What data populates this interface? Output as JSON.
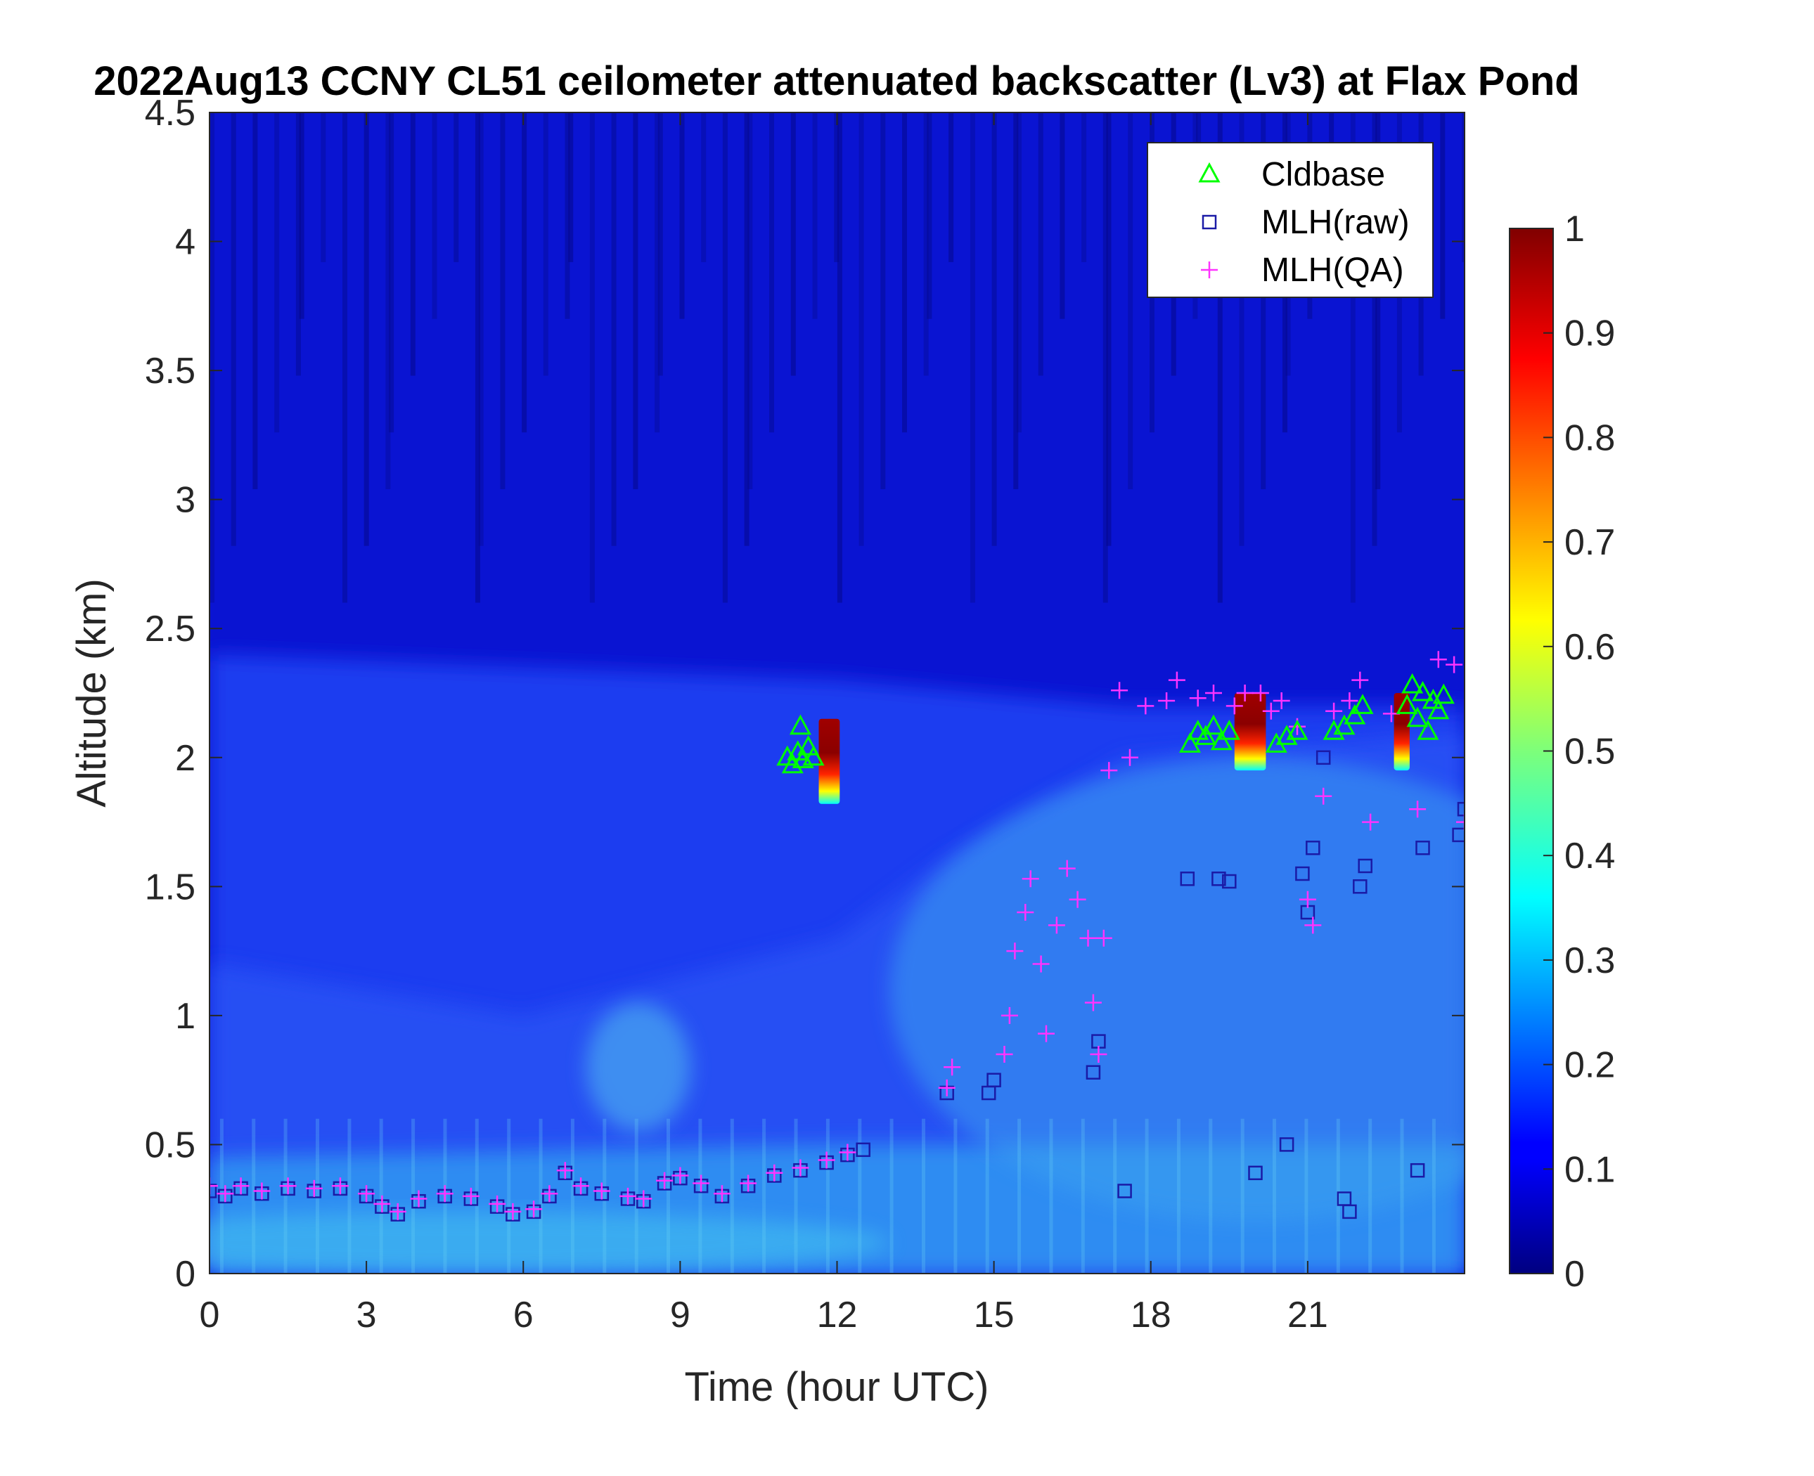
{
  "chart_data": {
    "type": "heatmap",
    "title": "2022Aug13 CCNY CL51 ceilometer attenuated backscatter (Lv3) at Flax Pond",
    "xlabel": "Time (hour UTC)",
    "ylabel": "Altitude (km)",
    "xlim": [
      0,
      24
    ],
    "ylim": [
      0,
      4.5
    ],
    "xticks": [
      "0",
      "3",
      "6",
      "9",
      "12",
      "15",
      "18",
      "21"
    ],
    "yticks": [
      "0",
      "0.5",
      "1",
      "1.5",
      "2",
      "2.5",
      "3",
      "3.5",
      "4",
      "4.5"
    ],
    "colorbar": {
      "colormap": "jet",
      "range": [
        0,
        1
      ],
      "ticks": [
        "0",
        "0.1",
        "0.2",
        "0.3",
        "0.4",
        "0.5",
        "0.6",
        "0.7",
        "0.8",
        "0.9",
        "1"
      ]
    },
    "legend": {
      "position": "top-right",
      "entries": [
        {
          "label": "Cldbase",
          "marker": "triangle",
          "color": "#00ff00"
        },
        {
          "label": "MLH(raw)",
          "marker": "square",
          "color": "#1a1aa6"
        },
        {
          "label": "MLH(QA)",
          "marker": "plus",
          "color": "#ff33ff"
        }
      ]
    },
    "background": {
      "description_values": "backscatter ~0.25 near surface, ~0.15 in boundary layer up to ~2.3 km, ~0.05 aloft",
      "boundary_layer_top_km": [
        [
          0,
          2.4
        ],
        [
          12,
          2.3
        ],
        [
          17.5,
          2.2
        ],
        [
          24,
          2.2
        ]
      ],
      "surface_layer_top_km": [
        [
          0,
          0.45
        ],
        [
          12,
          0.5
        ],
        [
          24,
          0.5
        ]
      ]
    },
    "cloud_patches": [
      {
        "x_range": [
          11.65,
          12.05
        ],
        "y_range": [
          1.82,
          2.15
        ],
        "peak": 1.0
      },
      {
        "x_range": [
          19.6,
          20.2
        ],
        "y_range": [
          1.95,
          2.25
        ],
        "peak": 0.9
      },
      {
        "x_range": [
          22.65,
          22.95
        ],
        "y_range": [
          1.95,
          2.25
        ],
        "peak": 1.0
      }
    ],
    "series": [
      {
        "name": "Cldbase",
        "marker": "triangle",
        "points": [
          [
            11.05,
            2.0
          ],
          [
            11.15,
            1.97
          ],
          [
            11.25,
            2.02
          ],
          [
            11.3,
            2.12
          ],
          [
            11.35,
            1.99
          ],
          [
            11.45,
            2.04
          ],
          [
            11.55,
            2.0
          ],
          [
            18.75,
            2.05
          ],
          [
            18.9,
            2.1
          ],
          [
            19.05,
            2.08
          ],
          [
            19.2,
            2.12
          ],
          [
            19.35,
            2.06
          ],
          [
            19.5,
            2.1
          ],
          [
            20.4,
            2.05
          ],
          [
            20.6,
            2.08
          ],
          [
            20.8,
            2.1
          ],
          [
            21.5,
            2.1
          ],
          [
            21.7,
            2.12
          ],
          [
            21.9,
            2.16
          ],
          [
            22.05,
            2.2
          ],
          [
            22.9,
            2.2
          ],
          [
            23.0,
            2.28
          ],
          [
            23.1,
            2.15
          ],
          [
            23.2,
            2.25
          ],
          [
            23.3,
            2.1
          ],
          [
            23.4,
            2.22
          ],
          [
            23.5,
            2.18
          ],
          [
            23.6,
            2.24
          ]
        ]
      },
      {
        "name": "MLH(raw)",
        "marker": "square",
        "points": [
          [
            0.0,
            0.32
          ],
          [
            0.3,
            0.3
          ],
          [
            0.6,
            0.33
          ],
          [
            1.0,
            0.31
          ],
          [
            1.5,
            0.33
          ],
          [
            2.0,
            0.32
          ],
          [
            2.5,
            0.33
          ],
          [
            3.0,
            0.3
          ],
          [
            3.3,
            0.26
          ],
          [
            3.6,
            0.23
          ],
          [
            4.0,
            0.28
          ],
          [
            4.5,
            0.3
          ],
          [
            5.0,
            0.29
          ],
          [
            5.5,
            0.26
          ],
          [
            5.8,
            0.23
          ],
          [
            6.2,
            0.24
          ],
          [
            6.5,
            0.3
          ],
          [
            6.8,
            0.39
          ],
          [
            7.1,
            0.33
          ],
          [
            7.5,
            0.31
          ],
          [
            8.0,
            0.29
          ],
          [
            8.3,
            0.28
          ],
          [
            8.7,
            0.35
          ],
          [
            9.0,
            0.37
          ],
          [
            9.4,
            0.34
          ],
          [
            9.8,
            0.3
          ],
          [
            10.3,
            0.34
          ],
          [
            10.8,
            0.38
          ],
          [
            11.3,
            0.4
          ],
          [
            11.8,
            0.43
          ],
          [
            12.2,
            0.46
          ],
          [
            12.5,
            0.48
          ],
          [
            14.1,
            0.7
          ],
          [
            14.9,
            0.7
          ],
          [
            15.0,
            0.75
          ],
          [
            16.9,
            0.78
          ],
          [
            17.0,
            0.9
          ],
          [
            17.5,
            0.32
          ],
          [
            18.7,
            1.53
          ],
          [
            19.3,
            1.53
          ],
          [
            19.5,
            1.52
          ],
          [
            20.0,
            0.39
          ],
          [
            20.6,
            0.5
          ],
          [
            20.9,
            1.55
          ],
          [
            21.0,
            1.4
          ],
          [
            21.1,
            1.65
          ],
          [
            21.3,
            2.0
          ],
          [
            21.7,
            0.29
          ],
          [
            21.8,
            0.24
          ],
          [
            22.0,
            1.5
          ],
          [
            22.1,
            1.58
          ],
          [
            23.1,
            0.4
          ],
          [
            23.2,
            1.65
          ],
          [
            23.9,
            1.7
          ],
          [
            24.0,
            1.8
          ]
        ]
      },
      {
        "name": "MLH(QA)",
        "marker": "plus",
        "points": [
          [
            0.0,
            0.34
          ],
          [
            0.3,
            0.31
          ],
          [
            0.6,
            0.34
          ],
          [
            1.0,
            0.32
          ],
          [
            1.5,
            0.34
          ],
          [
            2.0,
            0.33
          ],
          [
            2.5,
            0.34
          ],
          [
            3.0,
            0.31
          ],
          [
            3.3,
            0.27
          ],
          [
            3.6,
            0.24
          ],
          [
            4.0,
            0.29
          ],
          [
            4.5,
            0.31
          ],
          [
            5.0,
            0.3
          ],
          [
            5.5,
            0.27
          ],
          [
            5.8,
            0.24
          ],
          [
            6.2,
            0.25
          ],
          [
            6.5,
            0.31
          ],
          [
            6.8,
            0.4
          ],
          [
            7.1,
            0.34
          ],
          [
            7.5,
            0.32
          ],
          [
            8.0,
            0.3
          ],
          [
            8.3,
            0.29
          ],
          [
            8.7,
            0.36
          ],
          [
            9.0,
            0.38
          ],
          [
            9.4,
            0.35
          ],
          [
            9.8,
            0.31
          ],
          [
            10.3,
            0.35
          ],
          [
            10.8,
            0.39
          ],
          [
            11.3,
            0.41
          ],
          [
            11.8,
            0.44
          ],
          [
            12.2,
            0.47
          ],
          [
            14.1,
            0.72
          ],
          [
            14.2,
            0.8
          ],
          [
            15.2,
            0.85
          ],
          [
            15.3,
            1.0
          ],
          [
            15.4,
            1.25
          ],
          [
            15.6,
            1.4
          ],
          [
            15.7,
            1.53
          ],
          [
            15.9,
            1.2
          ],
          [
            16.0,
            0.93
          ],
          [
            16.2,
            1.35
          ],
          [
            16.4,
            1.57
          ],
          [
            16.6,
            1.45
          ],
          [
            16.8,
            1.3
          ],
          [
            16.9,
            1.05
          ],
          [
            17.0,
            0.85
          ],
          [
            17.1,
            1.3
          ],
          [
            17.2,
            1.95
          ],
          [
            17.4,
            2.26
          ],
          [
            17.6,
            2.0
          ],
          [
            17.9,
            2.2
          ],
          [
            18.3,
            2.22
          ],
          [
            18.5,
            2.3
          ],
          [
            18.9,
            2.23
          ],
          [
            19.2,
            2.25
          ],
          [
            19.6,
            2.2
          ],
          [
            19.8,
            2.25
          ],
          [
            20.1,
            2.25
          ],
          [
            20.3,
            2.18
          ],
          [
            20.5,
            2.22
          ],
          [
            20.8,
            2.12
          ],
          [
            21.0,
            1.45
          ],
          [
            21.1,
            1.35
          ],
          [
            21.3,
            1.85
          ],
          [
            21.5,
            2.18
          ],
          [
            21.8,
            2.22
          ],
          [
            22.0,
            2.3
          ],
          [
            22.2,
            1.75
          ],
          [
            22.6,
            2.17
          ],
          [
            23.1,
            1.8
          ],
          [
            23.5,
            2.38
          ],
          [
            23.8,
            2.36
          ],
          [
            24.0,
            1.75
          ]
        ]
      }
    ]
  }
}
